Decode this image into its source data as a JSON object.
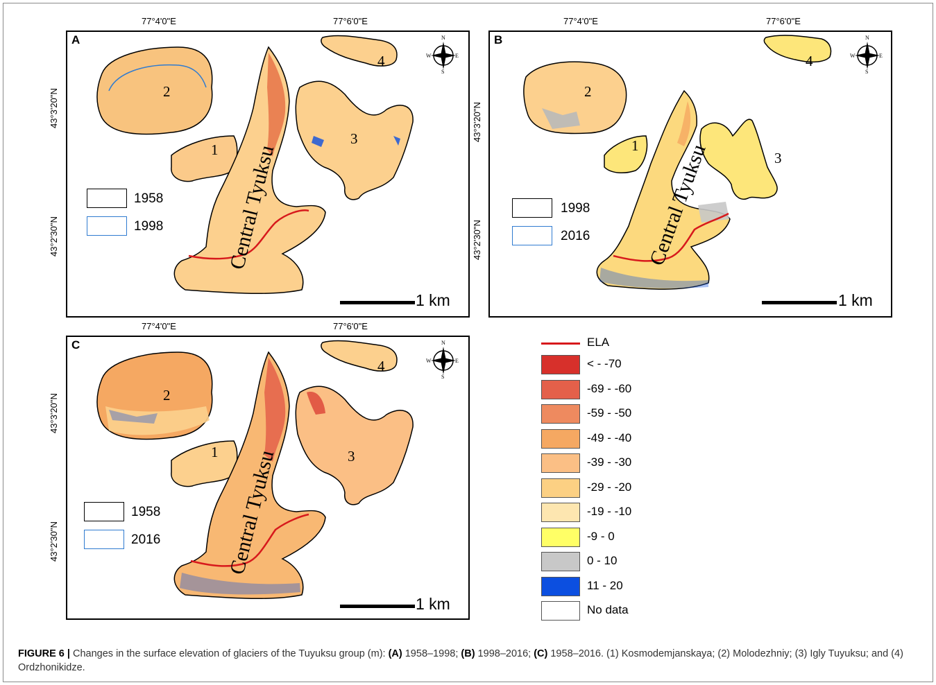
{
  "figure": {
    "label": "FIGURE 6 |",
    "text1": " Changes in the surface elevation of glaciers of the Tuyuksu group (m): ",
    "a": "(A)",
    "a_text": " 1958–1998; ",
    "b": "(B)",
    "b_text": " 1998–2016; ",
    "c": "(C)",
    "c_text": " 1958–2016. (1) Kosmodemjanskaya; (2) Molodezhniy; (3) Igly Tuyuksu; and (4) Ordzhonikidze."
  },
  "coords": {
    "lon1": "77°4'0\"E",
    "lon2": "77°6'0\"E",
    "lat1": "43°3'20\"N",
    "lat2": "43°2'30\"N"
  },
  "panels": {
    "A": {
      "label": "A",
      "legend1": "1958",
      "legend2": "1998"
    },
    "B": {
      "label": "B",
      "legend1": "1998",
      "legend2": "2016"
    },
    "C": {
      "label": "C",
      "legend1": "1958",
      "legend2": "2016"
    }
  },
  "glacier_labels": {
    "g1": "1",
    "g2": "2",
    "g3": "3",
    "g4": "4",
    "central": "Central Tyuksu"
  },
  "scale": "1 km",
  "compass": {
    "n": "N",
    "e": "E",
    "s": "S",
    "w": "W"
  },
  "legend": {
    "ela": {
      "label": "ELA",
      "color": "#d7191c"
    },
    "classes": [
      {
        "label": "< - -70",
        "color": "#d7302b"
      },
      {
        "label": "-69 - -60",
        "color": "#e4604a"
      },
      {
        "label": "-59 - -50",
        "color": "#ee8a5f"
      },
      {
        "label": "-49 - -40",
        "color": "#f5a862"
      },
      {
        "label": "-39 - -30",
        "color": "#fbbf85"
      },
      {
        "label": "-29 - -20",
        "color": "#fcd083"
      },
      {
        "label": "-19 - -10",
        "color": "#fde6b0"
      },
      {
        "label": "-9 - 0",
        "color": "#ffff66"
      },
      {
        "label": "0 - 10",
        "color": "#c8c8c8"
      },
      {
        "label": "11 - 20",
        "color": "#0c4fe0"
      },
      {
        "label": "No data",
        "color": "#ffffff"
      }
    ]
  }
}
